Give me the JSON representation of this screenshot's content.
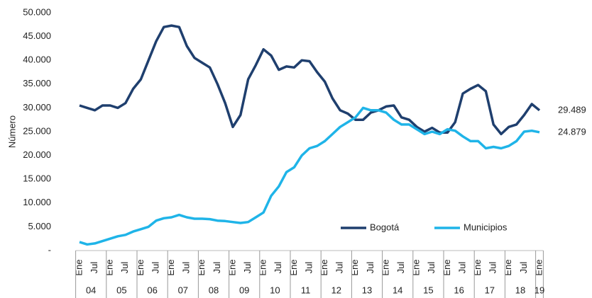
{
  "chart_data": {
    "type": "line",
    "y_label": "Número",
    "categories": [
      "Ene",
      null,
      "Jul",
      null,
      "Ene",
      null,
      "Jul",
      null,
      "Ene",
      null,
      "Jul",
      null,
      "Ene",
      null,
      "Jul",
      null,
      "Ene",
      null,
      "Jul",
      null,
      "Ene",
      null,
      "Jul",
      null,
      "Ene",
      null,
      "Jul",
      null,
      "Ene",
      null,
      "Jul",
      null,
      "Ene",
      null,
      "Jul",
      null,
      "Ene",
      null,
      "Jul",
      null,
      "Ene",
      null,
      "Jul",
      null,
      "Ene",
      null,
      "Jul",
      null,
      "Ene",
      null,
      "Jul",
      null,
      "Ene",
      null,
      "Jul",
      null,
      "Ene",
      null,
      "Jul",
      null,
      "Ene"
    ],
    "years": [
      "04",
      "05",
      "06",
      "07",
      "08",
      "09",
      "10",
      "11",
      "12",
      "13",
      "14",
      "15",
      "16",
      "17",
      "18",
      "19"
    ],
    "ylim": [
      0,
      50000
    ],
    "yticks": [
      {
        "value": 0,
        "label": "-"
      },
      {
        "value": 5000,
        "label": "5.000"
      },
      {
        "value": 10000,
        "label": "10.000"
      },
      {
        "value": 15000,
        "label": "15.000"
      },
      {
        "value": 20000,
        "label": "20.000"
      },
      {
        "value": 25000,
        "label": "25.000"
      },
      {
        "value": 30000,
        "label": "30.000"
      },
      {
        "value": 35000,
        "label": "35.000"
      },
      {
        "value": 40000,
        "label": "40.000"
      },
      {
        "value": 45000,
        "label": "45.000"
      },
      {
        "value": 50000,
        "label": "50.000"
      }
    ],
    "legend": "bottom-right",
    "series": [
      {
        "name": "Bogotá",
        "color": "#1f3f6e",
        "last_label": "29.489",
        "values": [
          30500,
          30000,
          29500,
          30500,
          30500,
          30000,
          31000,
          34000,
          36000,
          40000,
          44000,
          47000,
          47300,
          47000,
          43000,
          40500,
          39500,
          38500,
          35000,
          31000,
          26000,
          28500,
          36000,
          39000,
          42300,
          41000,
          38000,
          38700,
          38500,
          40000,
          39800,
          37500,
          35500,
          32000,
          29500,
          28800,
          27500,
          27500,
          29000,
          29500,
          30300,
          30500,
          28000,
          27500,
          26000,
          25000,
          25800,
          24800,
          24800,
          27000,
          33000,
          34000,
          34800,
          33500,
          26500,
          24500,
          26000,
          26500,
          28500,
          30800,
          29489
        ]
      },
      {
        "name": "Municipios",
        "color": "#1fb4e8",
        "last_label": "24.879",
        "values": [
          1800,
          1300,
          1500,
          2000,
          2500,
          3000,
          3300,
          4000,
          4500,
          5000,
          6300,
          6800,
          7000,
          7500,
          7000,
          6700,
          6700,
          6600,
          6300,
          6200,
          6000,
          5800,
          6000,
          7000,
          8000,
          11500,
          13500,
          16500,
          17500,
          20000,
          21500,
          22000,
          23000,
          24500,
          26000,
          27000,
          28000,
          30000,
          29500,
          29500,
          29000,
          27500,
          26500,
          26500,
          25500,
          24500,
          25000,
          24500,
          25500,
          25200,
          24000,
          23000,
          23000,
          21500,
          21800,
          21500,
          22000,
          23000,
          25000,
          25200,
          24879
        ]
      }
    ]
  }
}
